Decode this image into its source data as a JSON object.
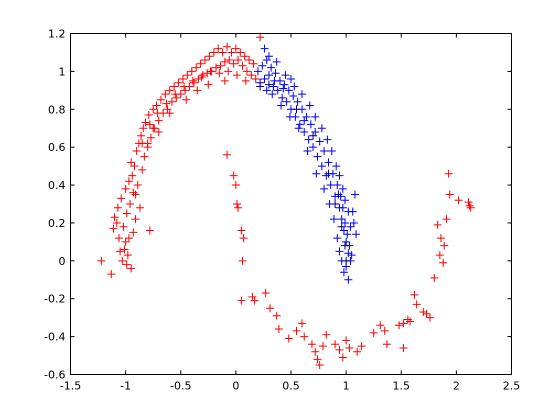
{
  "chart_data": {
    "type": "scatter",
    "title": "",
    "xlabel": "",
    "ylabel": "",
    "xlim": [
      -1.5,
      2.5
    ],
    "ylim": [
      -0.6,
      1.2
    ],
    "xticks": [
      -1.5,
      -1,
      -0.5,
      0,
      0.5,
      1,
      1.5,
      2,
      2.5
    ],
    "yticks": [
      -0.6,
      -0.4,
      -0.2,
      0,
      0.2,
      0.4,
      0.6,
      0.8,
      1,
      1.2
    ],
    "xtick_labels": [
      "-1.5",
      "-1",
      "-0.5",
      "0",
      "0.5",
      "1",
      "1.5",
      "2",
      "2.5"
    ],
    "ytick_labels": [
      "-0.6",
      "-0.4",
      "-0.2",
      "0",
      "0.2",
      "0.4",
      "0.6",
      "0.8",
      "1",
      "1.2"
    ],
    "grid": false,
    "marker": "+",
    "series": [
      {
        "color": "#ff0000",
        "points": [
          [
            -1.22,
            0.0
          ],
          [
            -1.13,
            -0.07
          ],
          [
            -1.11,
            0.17
          ],
          [
            -1.1,
            0.23
          ],
          [
            -1.08,
            0.2
          ],
          [
            -1.06,
            0.12
          ],
          [
            -1.07,
            0.28
          ],
          [
            -1.05,
            0.05
          ],
          [
            -1.04,
            0.33
          ],
          [
            -1.03,
            0.0
          ],
          [
            -1.02,
            0.18
          ],
          [
            -1.0,
            0.38
          ],
          [
            -1.0,
            0.1
          ],
          [
            -0.99,
            0.25
          ],
          [
            -0.98,
            0.03
          ],
          [
            -0.97,
            0.42
          ],
          [
            -0.96,
            0.3
          ],
          [
            -0.95,
            -0.04
          ],
          [
            -0.94,
            0.45
          ],
          [
            -0.93,
            0.15
          ],
          [
            -0.92,
            0.5
          ],
          [
            -0.91,
            0.35
          ],
          [
            -0.9,
            0.58
          ],
          [
            -0.89,
            0.4
          ],
          [
            -0.88,
            0.62
          ],
          [
            -0.87,
            0.28
          ],
          [
            -0.86,
            0.66
          ],
          [
            -0.85,
            0.48
          ],
          [
            -0.84,
            0.7
          ],
          [
            -0.83,
            0.55
          ],
          [
            -0.82,
            0.73
          ],
          [
            -0.8,
            0.6
          ],
          [
            -0.79,
            0.77
          ],
          [
            -0.77,
            0.65
          ],
          [
            -0.75,
            0.8
          ],
          [
            -0.74,
            0.7
          ],
          [
            -0.72,
            0.82
          ],
          [
            -0.7,
            0.74
          ],
          [
            -0.68,
            0.85
          ],
          [
            -0.66,
            0.78
          ],
          [
            -0.64,
            0.88
          ],
          [
            -0.62,
            0.8
          ],
          [
            -0.6,
            0.9
          ],
          [
            -0.58,
            0.84
          ],
          [
            -0.56,
            0.92
          ],
          [
            -0.54,
            0.86
          ],
          [
            -0.52,
            0.94
          ],
          [
            -0.5,
            0.88
          ],
          [
            -0.48,
            0.96
          ],
          [
            -0.46,
            0.9
          ],
          [
            -0.44,
            0.98
          ],
          [
            -0.42,
            0.92
          ],
          [
            -0.4,
            1.0
          ],
          [
            -0.38,
            0.94
          ],
          [
            -0.36,
            1.02
          ],
          [
            -0.34,
            0.96
          ],
          [
            -0.32,
            1.04
          ],
          [
            -0.3,
            0.98
          ],
          [
            -0.28,
            1.06
          ],
          [
            -0.26,
            0.99
          ],
          [
            -0.24,
            1.08
          ],
          [
            -0.22,
            1.0
          ],
          [
            -0.2,
            1.1
          ],
          [
            -0.18,
            1.02
          ],
          [
            -0.16,
            1.12
          ],
          [
            -0.14,
            1.03
          ],
          [
            -0.12,
            1.1
          ],
          [
            -0.1,
            1.05
          ],
          [
            -0.08,
            1.13
          ],
          [
            -0.06,
            1.06
          ],
          [
            -0.04,
            1.1
          ],
          [
            -0.02,
            1.04
          ],
          [
            0.0,
            1.12
          ],
          [
            0.02,
            1.06
          ],
          [
            0.04,
            1.1
          ],
          [
            0.06,
            1.03
          ],
          [
            0.08,
            1.08
          ],
          [
            0.1,
            1.0
          ],
          [
            0.12,
            1.06
          ],
          [
            0.14,
            0.98
          ],
          [
            0.16,
            1.04
          ],
          [
            0.18,
            0.96
          ],
          [
            0.22,
            1.18
          ],
          [
            -0.95,
            0.52
          ],
          [
            -0.93,
            0.36
          ],
          [
            -0.91,
            0.22
          ],
          [
            -0.97,
            0.12
          ],
          [
            -1.01,
            0.06
          ],
          [
            -0.99,
            -0.02
          ],
          [
            -0.85,
            0.62
          ],
          [
            -0.78,
            0.72
          ],
          [
            -0.71,
            0.78
          ],
          [
            -0.63,
            0.83
          ],
          [
            -0.55,
            0.88
          ],
          [
            -0.47,
            0.92
          ],
          [
            -0.39,
            0.95
          ],
          [
            -0.31,
            0.97
          ],
          [
            -0.23,
            1.0
          ],
          [
            -0.15,
            0.99
          ],
          [
            -0.07,
            1.0
          ],
          [
            0.01,
            0.98
          ],
          [
            0.09,
            0.95
          ],
          [
            -0.35,
            0.9
          ],
          [
            -0.45,
            0.85
          ],
          [
            -0.6,
            0.78
          ],
          [
            -0.75,
            0.7
          ],
          [
            -0.8,
            0.62
          ],
          [
            -0.7,
            0.68
          ],
          [
            -0.25,
            0.93
          ],
          [
            -0.1,
            0.95
          ],
          [
            -0.78,
            0.16
          ],
          [
            -0.08,
            0.56
          ],
          [
            -0.02,
            0.45
          ],
          [
            0.0,
            0.4
          ],
          [
            0.01,
            0.3
          ],
          [
            0.02,
            0.28
          ],
          [
            0.05,
            0.16
          ],
          [
            0.07,
            0.12
          ],
          [
            0.06,
            0.0
          ],
          [
            0.05,
            -0.21
          ],
          [
            0.15,
            -0.19
          ],
          [
            0.17,
            -0.21
          ],
          [
            0.27,
            -0.17
          ],
          [
            0.31,
            -0.25
          ],
          [
            0.37,
            -0.29
          ],
          [
            0.39,
            -0.36
          ],
          [
            0.48,
            -0.41
          ],
          [
            0.55,
            -0.37
          ],
          [
            0.6,
            -0.33
          ],
          [
            0.62,
            -0.4
          ],
          [
            0.69,
            -0.44
          ],
          [
            0.72,
            -0.48
          ],
          [
            0.74,
            -0.52
          ],
          [
            0.76,
            -0.55
          ],
          [
            0.79,
            -0.45
          ],
          [
            0.82,
            -0.39
          ],
          [
            0.9,
            -0.44
          ],
          [
            0.94,
            -0.47
          ],
          [
            0.97,
            -0.51
          ],
          [
            1.0,
            -0.42
          ],
          [
            1.03,
            -0.46
          ],
          [
            1.1,
            -0.48
          ],
          [
            1.14,
            -0.45
          ],
          [
            1.25,
            -0.38
          ],
          [
            1.31,
            -0.34
          ],
          [
            1.35,
            -0.37
          ],
          [
            1.37,
            -0.44
          ],
          [
            1.48,
            -0.34
          ],
          [
            1.52,
            -0.33
          ],
          [
            1.56,
            -0.31
          ],
          [
            1.58,
            -0.32
          ],
          [
            1.62,
            -0.18
          ],
          [
            1.52,
            -0.46
          ],
          [
            1.64,
            -0.23
          ],
          [
            1.7,
            -0.27
          ],
          [
            1.73,
            -0.28
          ],
          [
            1.76,
            -0.3
          ],
          [
            1.8,
            -0.09
          ],
          [
            1.85,
            0.03
          ],
          [
            1.86,
            0.12
          ],
          [
            1.88,
            -0.01
          ],
          [
            1.89,
            0.08
          ],
          [
            1.83,
            0.19
          ],
          [
            1.91,
            0.22
          ],
          [
            1.94,
            0.35
          ],
          [
            1.93,
            0.46
          ],
          [
            2.02,
            0.32
          ],
          [
            2.11,
            0.31
          ],
          [
            2.12,
            0.29
          ],
          [
            2.13,
            0.28
          ]
        ]
      },
      {
        "color": "#0000ff",
        "points": [
          [
            0.2,
            1.0
          ],
          [
            0.22,
            0.94
          ],
          [
            0.24,
            1.03
          ],
          [
            0.26,
            0.96
          ],
          [
            0.28,
            1.06
          ],
          [
            0.3,
            0.98
          ],
          [
            0.32,
            1.02
          ],
          [
            0.34,
            0.92
          ],
          [
            0.36,
            0.99
          ],
          [
            0.38,
            0.9
          ],
          [
            0.4,
            0.95
          ],
          [
            0.42,
            0.86
          ],
          [
            0.44,
            0.93
          ],
          [
            0.46,
            0.84
          ],
          [
            0.48,
            0.9
          ],
          [
            0.5,
            0.8
          ],
          [
            0.52,
            0.87
          ],
          [
            0.54,
            0.76
          ],
          [
            0.56,
            0.84
          ],
          [
            0.58,
            0.72
          ],
          [
            0.6,
            0.8
          ],
          [
            0.62,
            0.68
          ],
          [
            0.64,
            0.76
          ],
          [
            0.66,
            0.64
          ],
          [
            0.68,
            0.72
          ],
          [
            0.7,
            0.6
          ],
          [
            0.72,
            0.68
          ],
          [
            0.74,
            0.55
          ],
          [
            0.76,
            0.63
          ],
          [
            0.78,
            0.5
          ],
          [
            0.8,
            0.58
          ],
          [
            0.82,
            0.45
          ],
          [
            0.84,
            0.52
          ],
          [
            0.86,
            0.4
          ],
          [
            0.88,
            0.46
          ],
          [
            0.9,
            0.34
          ],
          [
            0.92,
            0.4
          ],
          [
            0.94,
            0.28
          ],
          [
            0.95,
            0.34
          ],
          [
            0.96,
            0.22
          ],
          [
            0.97,
            0.28
          ],
          [
            0.98,
            0.16
          ],
          [
            0.99,
            0.2
          ],
          [
            1.0,
            0.1
          ],
          [
            1.01,
            0.14
          ],
          [
            1.02,
            0.04
          ],
          [
            1.03,
            0.08
          ],
          [
            1.04,
            0.0
          ],
          [
            1.05,
            0.03
          ],
          [
            1.0,
            -0.03
          ],
          [
            0.98,
            -0.06
          ],
          [
            1.02,
            -0.1
          ],
          [
            1.08,
            0.35
          ],
          [
            1.07,
            0.2
          ],
          [
            1.09,
            0.14
          ],
          [
            1.06,
            0.26
          ],
          [
            0.3,
            1.08
          ],
          [
            0.26,
            1.12
          ],
          [
            0.37,
            1.05
          ],
          [
            0.45,
            0.98
          ],
          [
            0.53,
            0.92
          ],
          [
            0.6,
            0.88
          ],
          [
            0.67,
            0.82
          ],
          [
            0.72,
            0.76
          ],
          [
            0.78,
            0.7
          ],
          [
            0.83,
            0.64
          ],
          [
            0.87,
            0.58
          ],
          [
            0.91,
            0.5
          ],
          [
            0.94,
            0.45
          ],
          [
            0.97,
            0.38
          ],
          [
            0.99,
            0.32
          ],
          [
            1.02,
            0.26
          ],
          [
            1.04,
            0.18
          ],
          [
            0.33,
            0.88
          ],
          [
            0.41,
            0.82
          ],
          [
            0.49,
            0.76
          ],
          [
            0.57,
            0.7
          ],
          [
            0.65,
            0.58
          ],
          [
            0.73,
            0.46
          ],
          [
            0.8,
            0.38
          ],
          [
            0.85,
            0.3
          ],
          [
            0.89,
            0.22
          ],
          [
            0.92,
            0.12
          ],
          [
            0.94,
            0.05
          ],
          [
            0.96,
            0.0
          ],
          [
            0.5,
            0.96
          ],
          [
            0.43,
            0.91
          ],
          [
            0.35,
            0.95
          ],
          [
            0.28,
            0.9
          ],
          [
            0.62,
            0.74
          ]
        ]
      },
      {
        "color": "#000080",
        "points": [
          [
            0.22,
            0.92
          ],
          [
            0.3,
            0.93
          ],
          [
            0.55,
            0.8
          ],
          [
            0.7,
            0.66
          ],
          [
            0.84,
            0.46
          ],
          [
            0.9,
            0.3
          ],
          [
            0.96,
            0.18
          ],
          [
            0.99,
            0.08
          ],
          [
            1.0,
            0.0
          ],
          [
            0.93,
            0.35
          ]
        ]
      }
    ]
  }
}
